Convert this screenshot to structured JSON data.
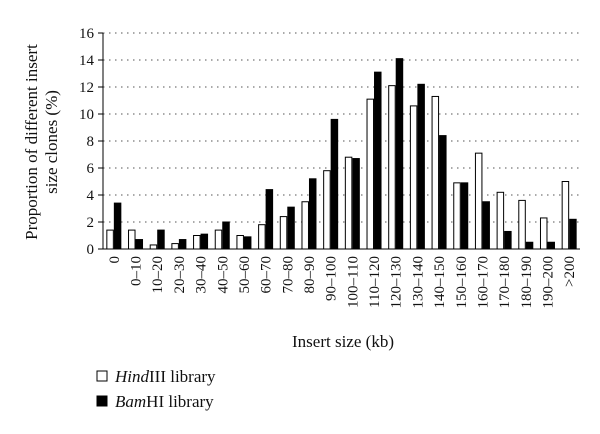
{
  "chart_data": {
    "type": "bar",
    "title": "",
    "xlabel": "Insert size (kb)",
    "ylabel": "Proportion of different insert size clones (%)",
    "ylabel_lines": [
      "Proportion of different insert",
      "size clones (%)"
    ],
    "ylim": [
      0,
      16
    ],
    "yticks": [
      0,
      2,
      4,
      6,
      8,
      10,
      12,
      14,
      16
    ],
    "grid": "horizontal-dotted",
    "legend_position": "bottom-left",
    "categories": [
      "0",
      "0–10",
      "10–20",
      "20–30",
      "30–40",
      "40–50",
      "50–60",
      "60–70",
      "70–80",
      "80–90",
      "90–100",
      "100–110",
      "110–120",
      "120–130",
      "130–140",
      "140–150",
      "150–160",
      "160–170",
      "170–180",
      "180–190",
      "190–200",
      ">200"
    ],
    "series": [
      {
        "name": "HindIII library",
        "name_italic": "Hind",
        "name_rest": "III library",
        "color": "#ffffff",
        "values": [
          1.4,
          1.4,
          0.3,
          0.4,
          1.0,
          1.4,
          1.0,
          1.8,
          2.4,
          3.5,
          5.8,
          6.8,
          11.1,
          12.1,
          10.6,
          11.3,
          4.9,
          7.1,
          4.2,
          3.6,
          2.3,
          5.0
        ]
      },
      {
        "name": "BamHI library",
        "name_italic": "Bam",
        "name_rest": "HI library",
        "color": "#000000",
        "values": [
          3.4,
          0.7,
          1.4,
          0.7,
          1.1,
          2.0,
          0.9,
          4.4,
          3.1,
          5.2,
          9.6,
          6.7,
          13.1,
          14.1,
          12.2,
          8.4,
          4.9,
          3.5,
          1.3,
          0.5,
          0.5,
          2.2
        ]
      }
    ]
  }
}
